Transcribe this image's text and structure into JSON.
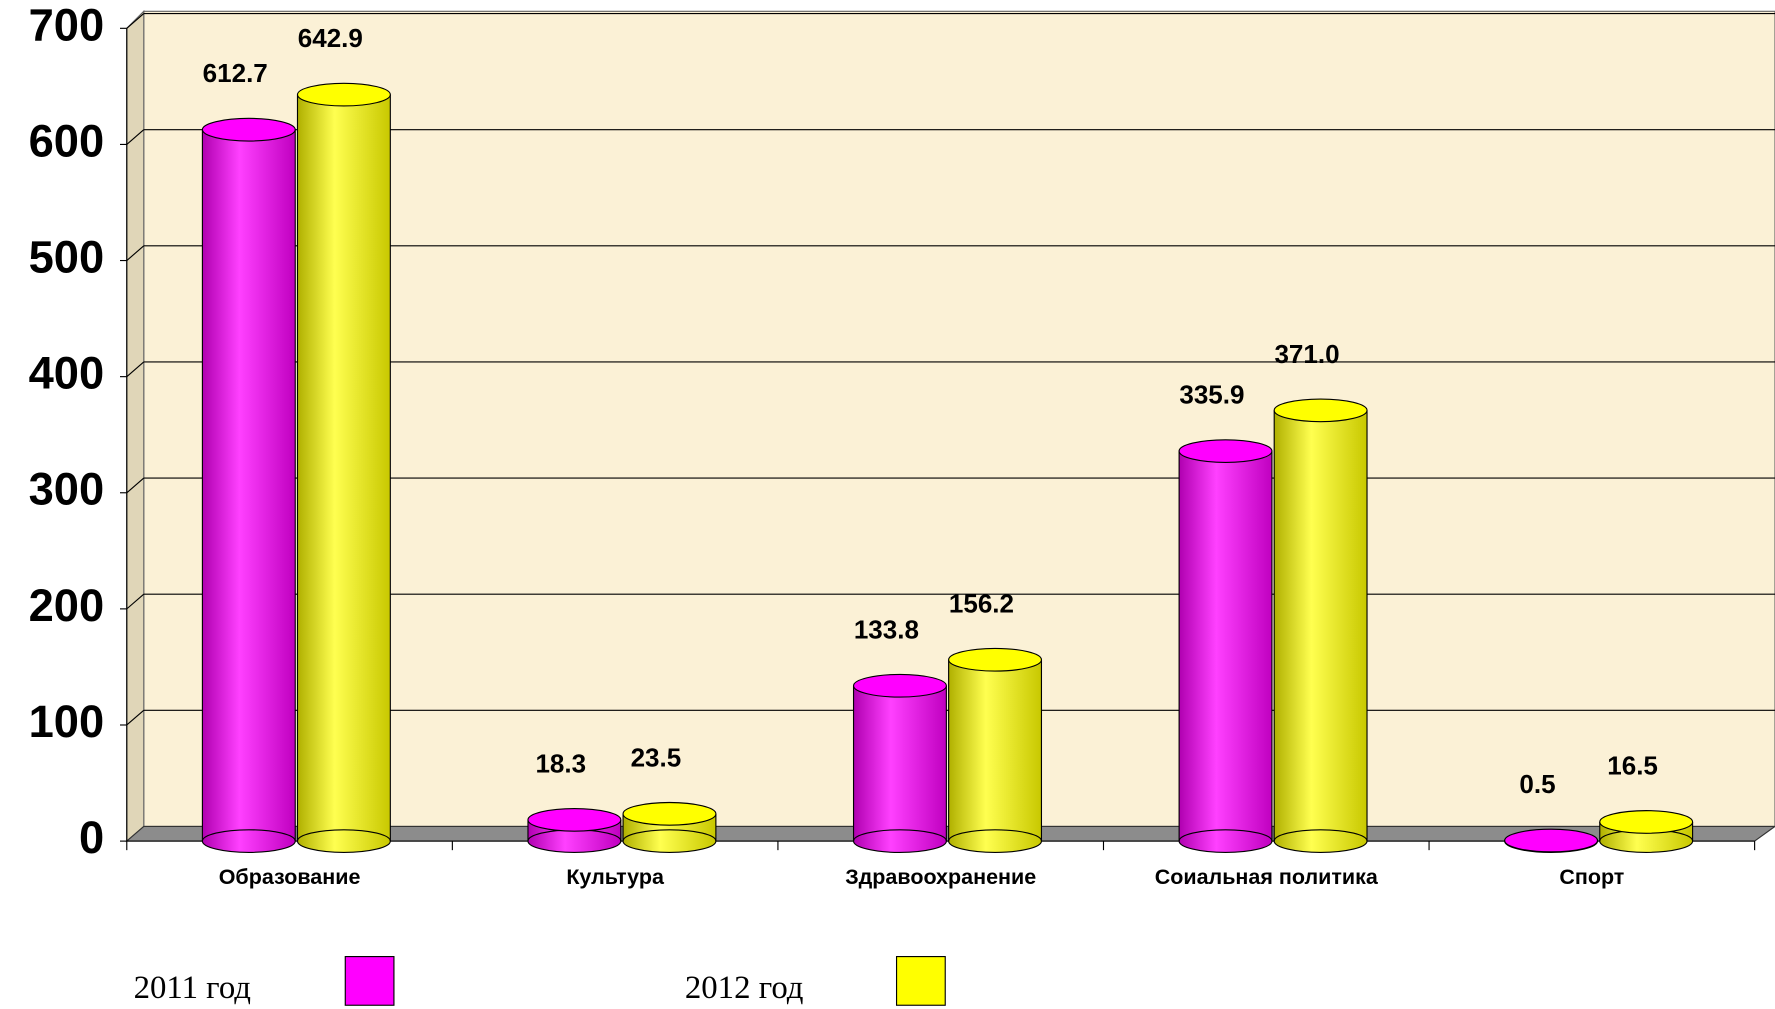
{
  "chart_data": {
    "type": "bar",
    "categories": [
      "Образование",
      "Культура",
      "Здравоохранение",
      "Соиальная политика",
      "Спорт"
    ],
    "series": [
      {
        "name": "2011 год",
        "color": "#ff00ff",
        "values": [
          612.7,
          18.3,
          133.8,
          335.9,
          0.5
        ]
      },
      {
        "name": "2012 год",
        "color": "#ffff00",
        "values": [
          642.9,
          23.5,
          156.2,
          371,
          16.5
        ],
        "value_labels": [
          "642.9",
          "23.5",
          "156.2",
          "371.0",
          "16.5"
        ]
      }
    ],
    "ylim": [
      0,
      700
    ],
    "yticks": [
      0,
      100,
      200,
      300,
      400,
      500,
      600,
      700
    ],
    "grid": true,
    "legend": "bottom"
  }
}
